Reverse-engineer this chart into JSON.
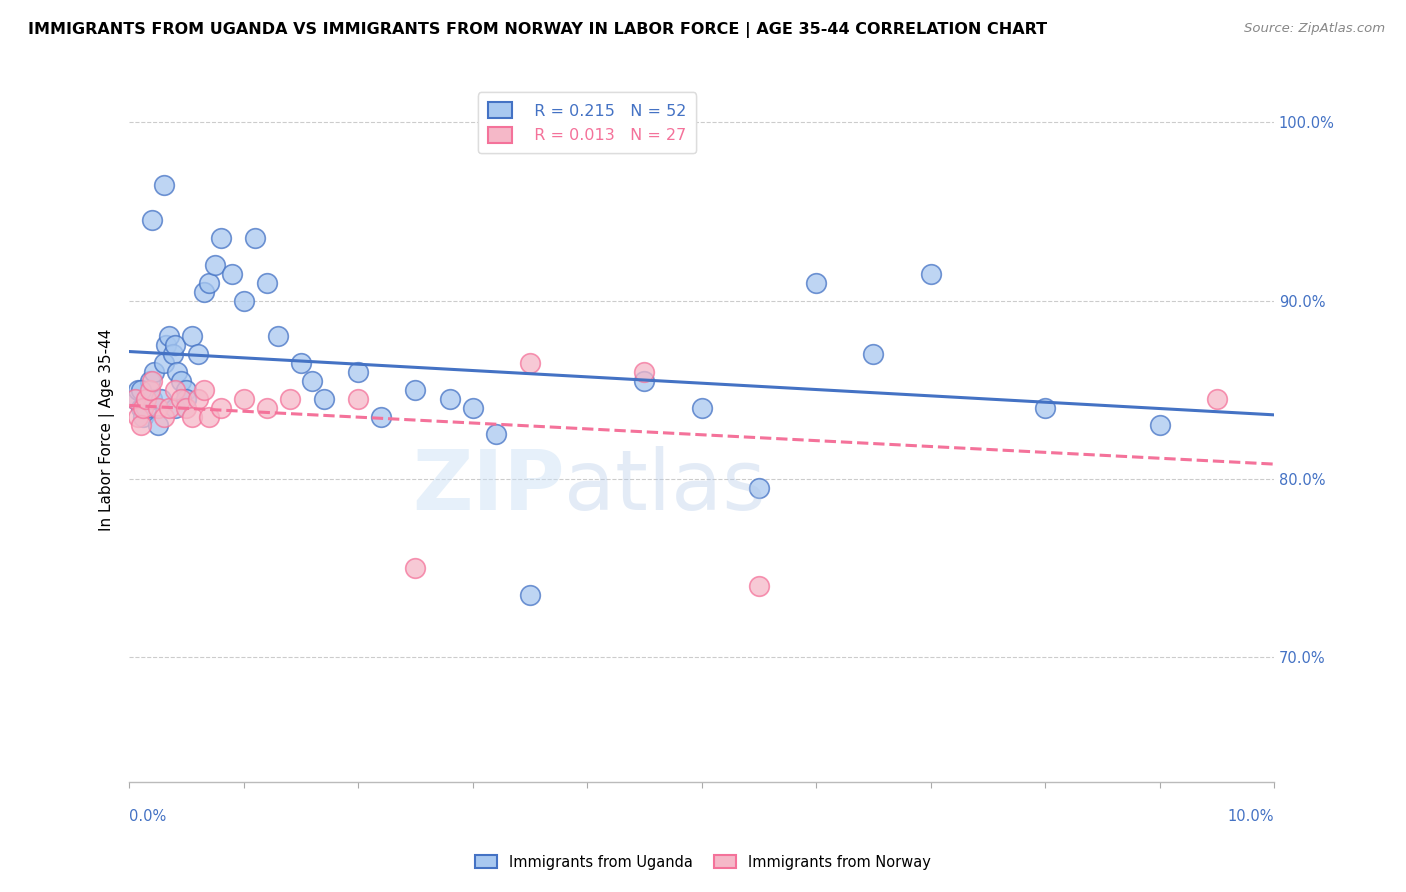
{
  "title": "IMMIGRANTS FROM UGANDA VS IMMIGRANTS FROM NORWAY IN LABOR FORCE | AGE 35-44 CORRELATION CHART",
  "source": "Source: ZipAtlas.com",
  "ylabel": "In Labor Force | Age 35-44",
  "xlim": [
    0.0,
    10.0
  ],
  "ylim": [
    63.0,
    102.5
  ],
  "yticks": [
    70.0,
    80.0,
    90.0,
    100.0
  ],
  "ytick_labels": [
    "70.0%",
    "80.0%",
    "90.0%",
    "100.0%"
  ],
  "legend_r1": "R = 0.215",
  "legend_n1": "N = 52",
  "legend_r2": "R = 0.013",
  "legend_n2": "N = 27",
  "color_uganda": "#A8C8F0",
  "color_norway": "#F5B8C8",
  "color_uganda_line": "#4472C4",
  "color_norway_line": "#F4729A",
  "background": "#FFFFFF",
  "grid_color": "#CCCCCC",
  "uganda_x": [
    0.05,
    0.08,
    0.1,
    0.12,
    0.15,
    0.18,
    0.2,
    0.22,
    0.25,
    0.28,
    0.3,
    0.32,
    0.35,
    0.38,
    0.4,
    0.42,
    0.45,
    0.5,
    0.55,
    0.6,
    0.65,
    0.7,
    0.75,
    0.8,
    0.9,
    1.0,
    1.1,
    1.2,
    1.3,
    1.5,
    1.6,
    1.7,
    2.0,
    2.2,
    2.5,
    2.8,
    3.0,
    3.2,
    3.5,
    4.5,
    5.0,
    5.5,
    6.0,
    6.5,
    7.0,
    8.0,
    9.0,
    0.1,
    0.2,
    0.3,
    0.4,
    0.5
  ],
  "uganda_y": [
    84.5,
    85.0,
    84.0,
    83.5,
    84.0,
    85.5,
    84.5,
    86.0,
    83.0,
    84.5,
    86.5,
    87.5,
    88.0,
    87.0,
    87.5,
    86.0,
    85.5,
    85.0,
    88.0,
    87.0,
    90.5,
    91.0,
    92.0,
    93.5,
    91.5,
    90.0,
    93.5,
    91.0,
    88.0,
    86.5,
    85.5,
    84.5,
    86.0,
    83.5,
    85.0,
    84.5,
    84.0,
    82.5,
    73.5,
    85.5,
    84.0,
    79.5,
    91.0,
    87.0,
    91.5,
    84.0,
    83.0,
    85.0,
    94.5,
    96.5,
    84.0,
    84.5
  ],
  "norway_x": [
    0.05,
    0.08,
    0.1,
    0.12,
    0.15,
    0.18,
    0.2,
    0.25,
    0.3,
    0.35,
    0.4,
    0.45,
    0.5,
    0.55,
    0.6,
    0.65,
    0.7,
    0.8,
    1.0,
    1.2,
    1.4,
    2.0,
    2.5,
    3.5,
    4.5,
    5.5,
    9.5
  ],
  "norway_y": [
    84.5,
    83.5,
    83.0,
    84.0,
    84.5,
    85.0,
    85.5,
    84.0,
    83.5,
    84.0,
    85.0,
    84.5,
    84.0,
    83.5,
    84.5,
    85.0,
    83.5,
    84.0,
    84.5,
    84.0,
    84.5,
    84.5,
    75.0,
    86.5,
    86.0,
    74.0,
    84.5
  ]
}
